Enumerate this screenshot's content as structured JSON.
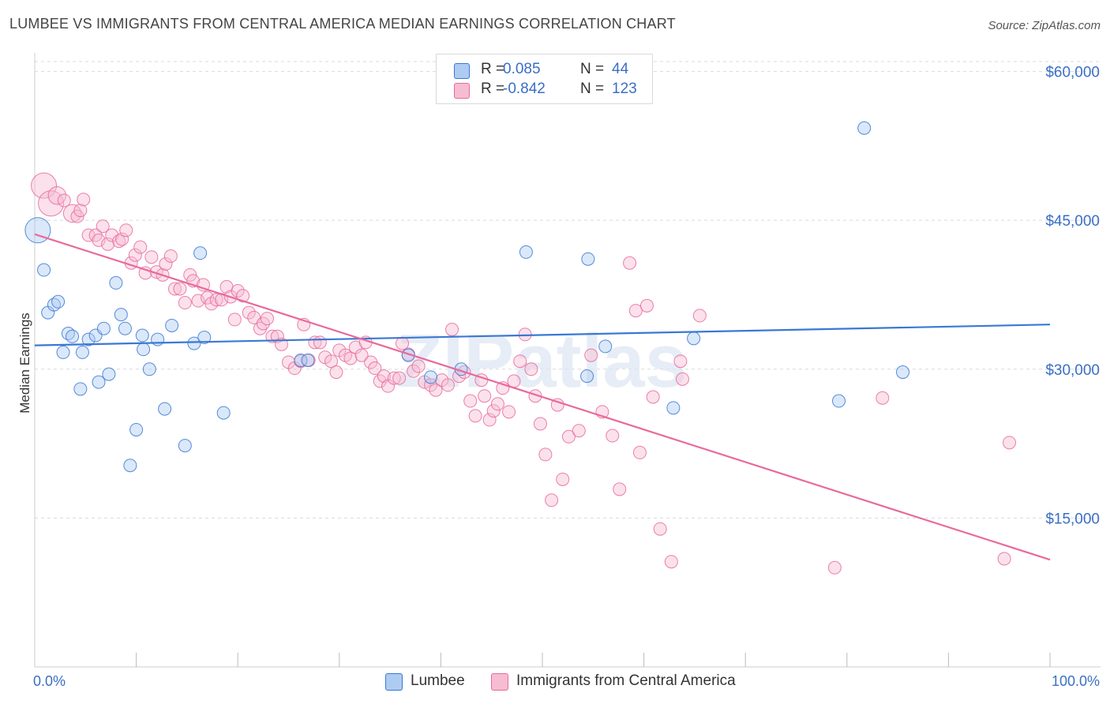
{
  "title": "LUMBEE VS IMMIGRANTS FROM CENTRAL AMERICA MEDIAN EARNINGS CORRELATION CHART",
  "source": "Source: ZipAtlas.com",
  "watermark": "ZIPatlas",
  "colors": {
    "blue": "#3a78d4",
    "blue_fill": "#aecbf2",
    "pink": "#e86a9b",
    "pink_fill": "#f6bcd2",
    "axis_text": "#3a6fc4",
    "grid": "#d9d9d9"
  },
  "legend_top": {
    "rows": [
      {
        "r_label": "R =",
        "r_value": "0.085",
        "n_label": "N =",
        "n_value": "44"
      },
      {
        "r_label": "R =",
        "r_value": "-0.842",
        "n_label": "N =",
        "n_value": "123"
      }
    ]
  },
  "legend_bottom": {
    "items": [
      "Lumbee",
      "Immigrants from Central America"
    ]
  },
  "chart_data": {
    "type": "scatter",
    "title": "LUMBEE VS IMMIGRANTS FROM CENTRAL AMERICA MEDIAN EARNINGS CORRELATION CHART",
    "xlabel": "",
    "ylabel": "Median Earnings",
    "xlim": [
      0,
      100
    ],
    "ylim": [
      0,
      61000
    ],
    "x_tick_labels": [
      "0.0%",
      "100.0%"
    ],
    "y_ticks": [
      15000,
      30000,
      45000,
      60000
    ],
    "y_tick_labels": [
      "$15,000",
      "$30,000",
      "$45,000",
      "$60,000"
    ],
    "grid": true,
    "legend_position": "top-center",
    "series": [
      {
        "name": "Lumbee",
        "color": "#3a78d4",
        "trend": {
          "x": [
            0,
            100
          ],
          "y": [
            32400,
            34500
          ]
        },
        "points": [
          [
            0.3,
            44000,
            2
          ],
          [
            0.9,
            40000,
            1
          ],
          [
            1.3,
            35700,
            1
          ],
          [
            1.9,
            36500,
            1
          ],
          [
            2.3,
            36800,
            1
          ],
          [
            2.8,
            31700,
            1
          ],
          [
            3.3,
            33600,
            1
          ],
          [
            3.7,
            33300,
            1
          ],
          [
            4.5,
            28000,
            1
          ],
          [
            4.7,
            31700,
            1
          ],
          [
            5.3,
            33000,
            1
          ],
          [
            6.0,
            33400,
            1
          ],
          [
            6.3,
            28700,
            1
          ],
          [
            6.8,
            34100,
            1
          ],
          [
            7.3,
            29500,
            1
          ],
          [
            8.0,
            38700,
            1
          ],
          [
            8.5,
            35500,
            1
          ],
          [
            8.9,
            34100,
            1
          ],
          [
            9.4,
            20300,
            1
          ],
          [
            10.0,
            23900,
            1
          ],
          [
            10.6,
            33400,
            1
          ],
          [
            10.7,
            32000,
            1
          ],
          [
            11.3,
            30000,
            1
          ],
          [
            12.1,
            33000,
            1
          ],
          [
            12.8,
            26000,
            1
          ],
          [
            13.5,
            34400,
            1
          ],
          [
            14.8,
            22300,
            1
          ],
          [
            15.7,
            32600,
            1
          ],
          [
            16.3,
            41700,
            1
          ],
          [
            16.7,
            33200,
            1
          ],
          [
            18.6,
            25600,
            1
          ],
          [
            26.2,
            30900,
            1
          ],
          [
            26.9,
            30900,
            1
          ],
          [
            36.8,
            31400,
            1
          ],
          [
            39.0,
            29200,
            1
          ],
          [
            42.0,
            30000,
            1
          ],
          [
            48.4,
            41800,
            1
          ],
          [
            54.4,
            29300,
            1
          ],
          [
            54.5,
            41100,
            1
          ],
          [
            56.2,
            32300,
            1
          ],
          [
            62.9,
            26100,
            1
          ],
          [
            64.9,
            33100,
            1
          ],
          [
            79.2,
            26800,
            1
          ],
          [
            81.7,
            54300,
            1
          ],
          [
            85.5,
            29700,
            1
          ]
        ]
      },
      {
        "name": "Immigrants from Central America",
        "color": "#e86a9b",
        "trend": {
          "x": [
            0,
            100
          ],
          "y": [
            43600,
            10800
          ]
        },
        "points": [
          [
            0.9,
            48500,
            2
          ],
          [
            1.6,
            46700,
            2
          ],
          [
            2.2,
            47500,
            1.4
          ],
          [
            2.9,
            47000,
            1
          ],
          [
            3.7,
            45700,
            1.4
          ],
          [
            4.2,
            45400,
            1
          ],
          [
            4.5,
            46000,
            1
          ],
          [
            4.8,
            47100,
            1
          ],
          [
            5.3,
            43500,
            1
          ],
          [
            6.0,
            43500,
            1
          ],
          [
            6.3,
            43000,
            1
          ],
          [
            6.7,
            44400,
            1
          ],
          [
            7.2,
            42600,
            1
          ],
          [
            7.6,
            43500,
            1
          ],
          [
            8.3,
            42900,
            1
          ],
          [
            8.6,
            43100,
            1
          ],
          [
            9.0,
            44000,
            1
          ],
          [
            9.5,
            40700,
            1
          ],
          [
            9.9,
            41500,
            1
          ],
          [
            10.4,
            42300,
            1
          ],
          [
            10.9,
            39700,
            1
          ],
          [
            11.5,
            41300,
            1
          ],
          [
            12.0,
            39800,
            1
          ],
          [
            12.6,
            39500,
            1
          ],
          [
            12.9,
            40600,
            1
          ],
          [
            13.4,
            41400,
            1
          ],
          [
            13.8,
            38100,
            1
          ],
          [
            14.3,
            38100,
            1
          ],
          [
            14.8,
            36700,
            1
          ],
          [
            15.3,
            39500,
            1
          ],
          [
            15.6,
            38900,
            1
          ],
          [
            16.1,
            36900,
            1
          ],
          [
            16.6,
            38500,
            1
          ],
          [
            17.0,
            37200,
            1
          ],
          [
            17.4,
            36600,
            1
          ],
          [
            17.9,
            37000,
            1
          ],
          [
            18.4,
            37000,
            1
          ],
          [
            18.9,
            38300,
            1
          ],
          [
            19.3,
            37300,
            1
          ],
          [
            19.7,
            35000,
            1
          ],
          [
            20.0,
            37900,
            1
          ],
          [
            20.5,
            37400,
            1
          ],
          [
            21.1,
            35700,
            1
          ],
          [
            21.6,
            35200,
            1
          ],
          [
            22.2,
            34100,
            1
          ],
          [
            22.5,
            34600,
            1
          ],
          [
            22.9,
            35100,
            1
          ],
          [
            23.4,
            33300,
            1
          ],
          [
            23.9,
            33300,
            1
          ],
          [
            24.3,
            32500,
            1
          ],
          [
            25.0,
            30700,
            1
          ],
          [
            25.6,
            30100,
            1
          ],
          [
            26.2,
            30800,
            1
          ],
          [
            26.5,
            34500,
            1
          ],
          [
            27.0,
            30900,
            1
          ],
          [
            27.6,
            32700,
            1
          ],
          [
            28.1,
            32700,
            1
          ],
          [
            28.6,
            31200,
            1
          ],
          [
            29.2,
            30800,
            1
          ],
          [
            29.7,
            29700,
            1
          ],
          [
            30.0,
            31900,
            1
          ],
          [
            30.6,
            31400,
            1
          ],
          [
            31.1,
            31100,
            1
          ],
          [
            31.6,
            32200,
            1
          ],
          [
            32.2,
            31400,
            1
          ],
          [
            32.6,
            32700,
            1
          ],
          [
            33.1,
            30700,
            1
          ],
          [
            33.5,
            30100,
            1
          ],
          [
            34.0,
            28800,
            1
          ],
          [
            34.4,
            29300,
            1
          ],
          [
            34.8,
            28300,
            1
          ],
          [
            35.4,
            29100,
            1
          ],
          [
            35.9,
            29100,
            1
          ],
          [
            36.2,
            32600,
            1
          ],
          [
            36.8,
            31500,
            1
          ],
          [
            37.3,
            29800,
            1
          ],
          [
            37.8,
            30300,
            1
          ],
          [
            38.4,
            28700,
            1
          ],
          [
            39.0,
            28400,
            1
          ],
          [
            39.5,
            27900,
            1
          ],
          [
            40.1,
            28900,
            1
          ],
          [
            40.7,
            28400,
            1
          ],
          [
            41.1,
            34000,
            1
          ],
          [
            41.8,
            29300,
            1
          ],
          [
            42.3,
            29700,
            1
          ],
          [
            42.9,
            26800,
            1
          ],
          [
            43.4,
            25300,
            1
          ],
          [
            44.0,
            28900,
            1
          ],
          [
            44.3,
            27300,
            1
          ],
          [
            44.8,
            24900,
            1
          ],
          [
            45.2,
            25800,
            1
          ],
          [
            45.6,
            26500,
            1
          ],
          [
            46.1,
            28100,
            1
          ],
          [
            46.7,
            25700,
            1
          ],
          [
            47.2,
            28800,
            1
          ],
          [
            47.8,
            30800,
            1
          ],
          [
            48.3,
            33500,
            1
          ],
          [
            48.9,
            30000,
            1
          ],
          [
            49.3,
            27300,
            1
          ],
          [
            49.8,
            24500,
            1
          ],
          [
            50.3,
            21400,
            1
          ],
          [
            50.9,
            16800,
            1
          ],
          [
            51.5,
            26400,
            1
          ],
          [
            52.0,
            18900,
            1
          ],
          [
            52.6,
            23200,
            1
          ],
          [
            53.6,
            23800,
            1
          ],
          [
            54.8,
            31400,
            1
          ],
          [
            55.9,
            25700,
            1
          ],
          [
            56.9,
            23300,
            1
          ],
          [
            57.6,
            17900,
            1
          ],
          [
            58.6,
            40700,
            1
          ],
          [
            59.2,
            35900,
            1
          ],
          [
            59.6,
            21600,
            1
          ],
          [
            60.3,
            36400,
            1
          ],
          [
            60.9,
            27200,
            1
          ],
          [
            61.6,
            13900,
            1
          ],
          [
            62.7,
            10600,
            1
          ],
          [
            63.6,
            30800,
            1
          ],
          [
            63.8,
            29000,
            1
          ],
          [
            65.5,
            35400,
            1
          ],
          [
            78.8,
            10000,
            1
          ],
          [
            83.5,
            27100,
            1
          ],
          [
            95.5,
            10900,
            1
          ],
          [
            96.0,
            22600,
            1
          ]
        ]
      }
    ]
  }
}
